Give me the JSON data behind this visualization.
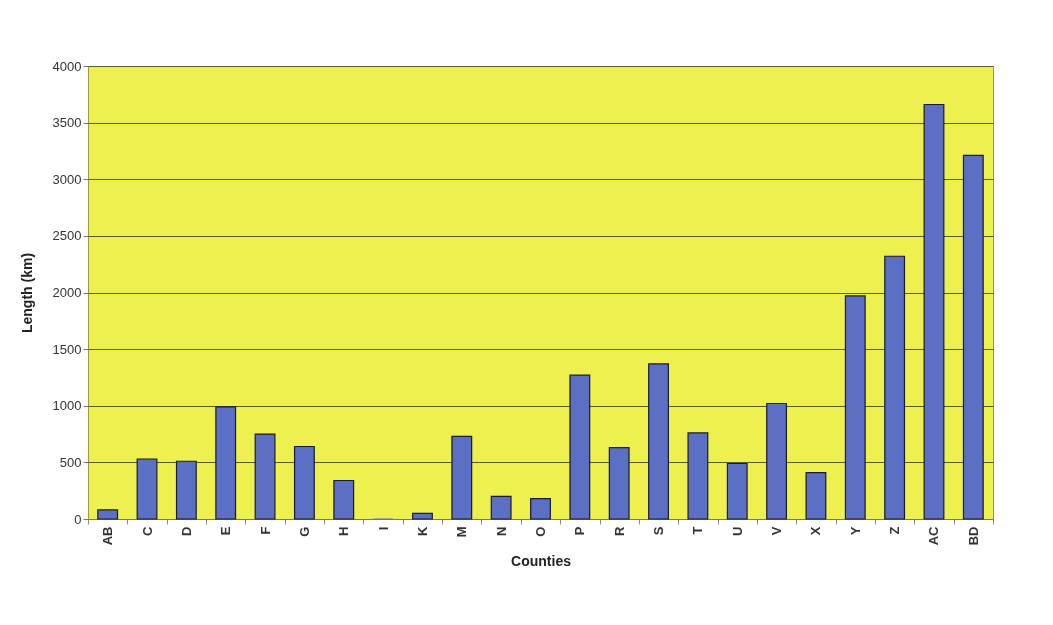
{
  "chart_data": {
    "type": "bar",
    "xlabel": "Counties",
    "ylabel": "Length (km)",
    "categories": [
      "AB",
      "C",
      "D",
      "E",
      "F",
      "G",
      "H",
      "I",
      "K",
      "M",
      "N",
      "O",
      "P",
      "R",
      "S",
      "T",
      "U",
      "V",
      "X",
      "Y",
      "Z",
      "AC",
      "BD"
    ],
    "values": [
      80,
      530,
      510,
      990,
      750,
      640,
      340,
      0,
      50,
      730,
      200,
      180,
      1270,
      630,
      1370,
      760,
      490,
      1020,
      410,
      1970,
      2320,
      3660,
      3210
    ],
    "color": "#5b6fc4",
    "ylim": [
      0,
      4000
    ],
    "yticks": [
      0,
      500,
      1000,
      1500,
      2000,
      2500,
      3000,
      3500,
      4000
    ],
    "grid": "y"
  }
}
